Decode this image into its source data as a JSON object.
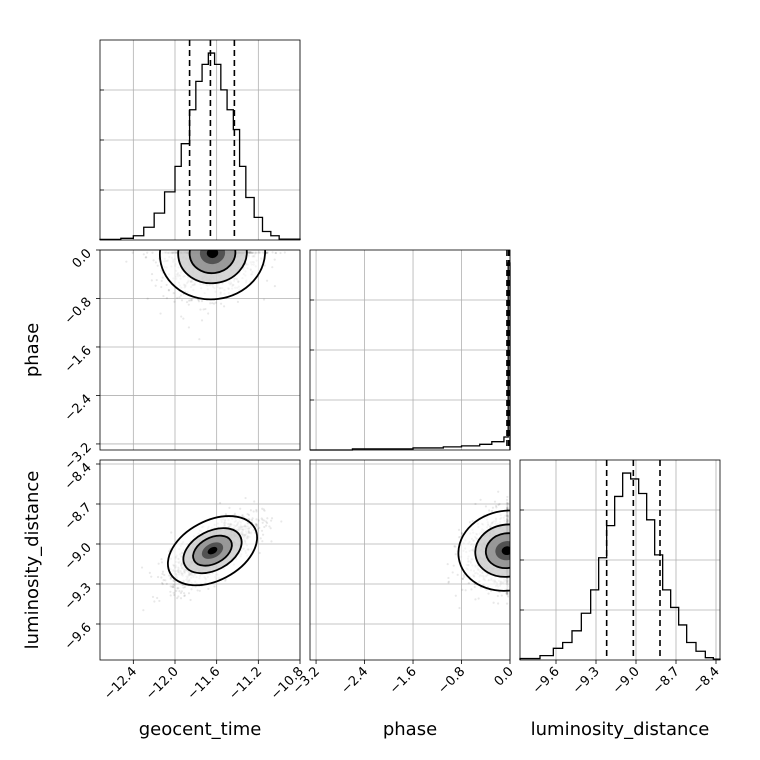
{
  "chart_data": {
    "type": "corner",
    "parameters": [
      "geocent_time",
      "phase",
      "luminosity_distance"
    ],
    "axis_labels": {
      "geocent_time": "geocent_time",
      "phase": "phase",
      "luminosity_distance": "luminosity_distance"
    },
    "ranges": {
      "geocent_time": [
        -12.72,
        -10.8
      ],
      "phase": [
        -3.3,
        0.0
      ],
      "luminosity_distance": [
        -9.87,
        -8.37
      ]
    },
    "ticks": {
      "geocent_time": [
        -12.4,
        -12.0,
        -11.6,
        -11.2,
        -10.8
      ],
      "phase": [
        -3.2,
        -2.4,
        -1.6,
        -0.8,
        0.0
      ],
      "luminosity_distance": [
        -9.6,
        -9.3,
        -9.0,
        -8.7,
        -8.4
      ]
    },
    "tick_labels": {
      "geocent_time": [
        "−12.4",
        "−12.0",
        "−11.6",
        "−11.2",
        "−10.8"
      ],
      "phase": [
        "−3.2",
        "−2.4",
        "−1.6",
        "−0.8",
        "0.0"
      ],
      "luminosity_distance": [
        "−9.6",
        "−9.3",
        "−9.0",
        "−8.7",
        "−8.4"
      ]
    },
    "quantiles": {
      "geocent_time": [
        -11.86,
        -11.66,
        -11.43
      ],
      "phase": [
        -0.05,
        -0.02,
        -0.01
      ],
      "luminosity_distance": [
        -9.22,
        -9.02,
        -8.82
      ]
    },
    "histograms": {
      "geocent_time": {
        "edges": [
          -12.72,
          -12.52,
          -12.4,
          -12.3,
          -12.2,
          -12.1,
          -12.0,
          -11.94,
          -11.86,
          -11.8,
          -11.74,
          -11.68,
          -11.62,
          -11.56,
          -11.5,
          -11.44,
          -11.38,
          -11.32,
          -11.24,
          -11.16,
          -11.08,
          -11.0,
          -10.8
        ],
        "counts": [
          0.2,
          0.6,
          1.5,
          4.5,
          9.5,
          17,
          26,
          34,
          46,
          56,
          62,
          66,
          62,
          53,
          46,
          39,
          26,
          15,
          8,
          3,
          1.5,
          0.3
        ]
      },
      "phase": {
        "edges": [
          -3.3,
          -2.6,
          -1.6,
          -1.1,
          -0.8,
          -0.5,
          -0.3,
          -0.1,
          -0.03,
          0.0
        ],
        "counts": [
          0,
          0.4,
          0.8,
          1.2,
          1.6,
          2.2,
          3.2,
          5,
          72
        ]
      },
      "luminosity_distance": {
        "edges": [
          -9.87,
          -9.72,
          -9.62,
          -9.55,
          -9.48,
          -9.41,
          -9.34,
          -9.28,
          -9.22,
          -9.16,
          -9.1,
          -9.04,
          -8.98,
          -8.92,
          -8.86,
          -8.8,
          -8.74,
          -8.68,
          -8.62,
          -8.55,
          -8.48,
          -8.42,
          -8.37
        ],
        "counts": [
          0.5,
          1.5,
          4,
          6,
          10,
          16,
          24,
          35,
          46,
          56,
          64,
          62,
          57,
          48,
          36,
          24,
          18,
          12,
          6,
          3,
          0.8,
          0.3
        ]
      }
    },
    "pairs": [
      {
        "x": "geocent_time",
        "y": "phase",
        "center": [
          -11.64,
          -0.05
        ],
        "spread": [
          0.22,
          0.35
        ],
        "correlation": 0.15
      },
      {
        "x": "geocent_time",
        "y": "luminosity_distance",
        "center": [
          -11.64,
          -9.05
        ],
        "spread": [
          0.2,
          0.13
        ],
        "correlation": 0.72
      },
      {
        "x": "phase",
        "y": "luminosity_distance",
        "center": [
          -0.05,
          -9.05
        ],
        "spread": [
          0.35,
          0.14
        ],
        "correlation": 0.2
      }
    ],
    "grid": true
  }
}
